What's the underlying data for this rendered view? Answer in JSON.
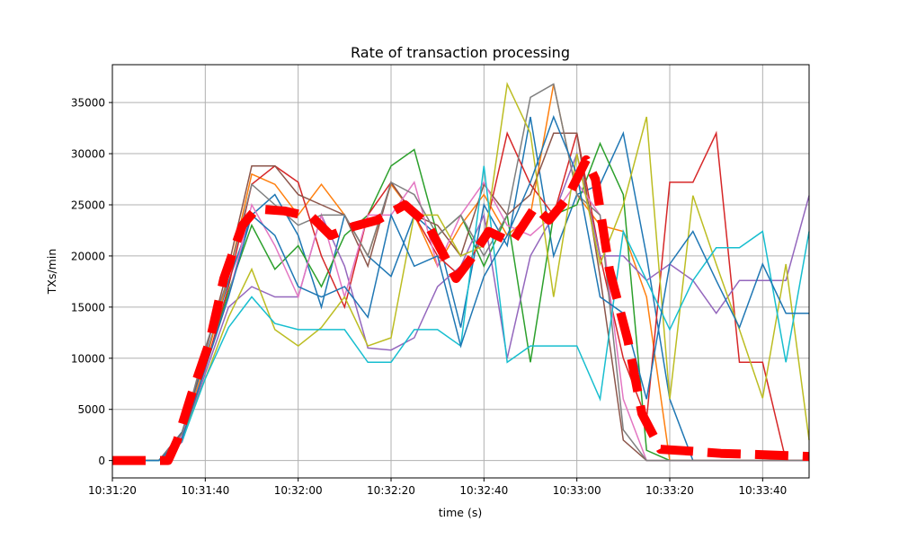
{
  "chart_data": {
    "type": "line",
    "title": "Rate of transaction processing",
    "xlabel": "time (s)",
    "ylabel": "TXs/min",
    "xlim": [
      "10:31:20",
      "10:33:50"
    ],
    "ylim": [
      -1700,
      38700
    ],
    "grid": true,
    "xticks": [
      "10:31:20",
      "10:31:40",
      "10:32:00",
      "10:32:20",
      "10:32:40",
      "10:33:00",
      "10:33:20",
      "10:33:40"
    ],
    "yticks": [
      0,
      5000,
      10000,
      15000,
      20000,
      25000,
      30000,
      35000
    ],
    "x": [
      "10:31:20",
      "10:31:25",
      "10:31:30",
      "10:31:35",
      "10:31:40",
      "10:31:45",
      "10:31:50",
      "10:31:55",
      "10:32:00",
      "10:32:05",
      "10:32:10",
      "10:32:15",
      "10:32:20",
      "10:32:25",
      "10:32:30",
      "10:32:35",
      "10:32:40",
      "10:32:45",
      "10:32:50",
      "10:32:55",
      "10:33:00",
      "10:33:05",
      "10:33:10",
      "10:33:15",
      "10:33:20",
      "10:33:25",
      "10:33:30",
      "10:33:35",
      "10:33:40",
      "10:33:45",
      "10:33:50"
    ],
    "series": [
      {
        "color": "#1f77b4",
        "values": [
          0,
          0,
          0,
          2800,
          10000,
          17500,
          24000,
          26000,
          22000,
          15000,
          24000,
          20000,
          18000,
          24000,
          22000,
          13000,
          25000,
          21000,
          33600,
          20000,
          26000,
          27000,
          32000,
          20000,
          6000,
          0,
          0,
          0,
          0,
          0,
          0
        ]
      },
      {
        "color": "#ff7f0e",
        "values": [
          0,
          0,
          0,
          2500,
          9500,
          18000,
          28000,
          27000,
          24000,
          27000,
          24000,
          20000,
          27000,
          24000,
          19000,
          23000,
          26000,
          22000,
          24000,
          36800,
          26000,
          23000,
          22400,
          16000,
          0,
          0,
          0,
          0,
          0,
          0,
          0
        ]
      },
      {
        "color": "#2ca02c",
        "values": [
          0,
          0,
          0,
          2000,
          9000,
          16500,
          23000,
          18700,
          21000,
          17000,
          22000,
          24000,
          28800,
          30400,
          22000,
          24000,
          19000,
          24000,
          9600,
          24000,
          25000,
          31000,
          26000,
          1000,
          0,
          0,
          0,
          0,
          0,
          0,
          0
        ]
      },
      {
        "color": "#d62728",
        "values": [
          0,
          0,
          0,
          2300,
          9000,
          17000,
          27000,
          28800,
          27200,
          20000,
          15000,
          24000,
          27200,
          24000,
          20000,
          18000,
          22000,
          32000,
          27000,
          24000,
          32000,
          20000,
          10000,
          4000,
          27200,
          27200,
          32000,
          9600,
          9600,
          0,
          0
        ]
      },
      {
        "color": "#9467bd",
        "values": [
          0,
          0,
          0,
          1800,
          8500,
          15000,
          17000,
          16000,
          16000,
          24000,
          19000,
          11000,
          10800,
          12000,
          17000,
          19000,
          24000,
          10000,
          20000,
          24000,
          30000,
          20000,
          20000,
          17600,
          19200,
          17600,
          14400,
          17600,
          17600,
          17600,
          25900
        ]
      },
      {
        "color": "#8c564b",
        "values": [
          0,
          0,
          0,
          2700,
          10500,
          19000,
          28800,
          28800,
          26000,
          25000,
          24000,
          19000,
          27200,
          24000,
          23000,
          20000,
          27000,
          24000,
          26000,
          32000,
          32000,
          18000,
          2000,
          0,
          0,
          0,
          0,
          0,
          0,
          0,
          0
        ]
      },
      {
        "color": "#e377c2",
        "values": [
          0,
          0,
          0,
          2400,
          9000,
          16000,
          25000,
          21000,
          16000,
          24000,
          16000,
          24000,
          24000,
          27200,
          19000,
          24000,
          27200,
          23000,
          22000,
          24000,
          27200,
          24000,
          6000,
          0,
          0,
          0,
          0,
          0,
          0,
          0,
          0
        ]
      },
      {
        "color": "#7f7f7f",
        "values": [
          0,
          0,
          0,
          2600,
          11000,
          18000,
          27000,
          25000,
          23000,
          24000,
          24000,
          20000,
          27200,
          26000,
          22000,
          24000,
          20000,
          24000,
          35500,
          36800,
          26000,
          24000,
          3000,
          0,
          0,
          0,
          0,
          0,
          0,
          0,
          0
        ]
      },
      {
        "color": "#bcbd22",
        "values": [
          0,
          0,
          0,
          2000,
          8000,
          14000,
          18700,
          12800,
          11200,
          13000,
          16000,
          11200,
          12000,
          24000,
          24000,
          20000,
          21000,
          36800,
          32000,
          16000,
          30000,
          19200,
          25000,
          33600,
          6000,
          25900,
          19200,
          12800,
          6100,
          19200,
          2000
        ]
      },
      {
        "color": "#17becf",
        "values": [
          0,
          0,
          0,
          1900,
          8000,
          13000,
          16000,
          13400,
          12800,
          12800,
          12800,
          9600,
          9600,
          12800,
          12800,
          11200,
          28800,
          9600,
          11200,
          11200,
          11200,
          6000,
          22400,
          17600,
          12800,
          17600,
          20800,
          20800,
          22400,
          9600,
          22400
        ]
      },
      {
        "color": "#1f77b4",
        "values": [
          0,
          0,
          0,
          2200,
          9000,
          16000,
          24000,
          22000,
          17000,
          16000,
          17000,
          14000,
          24000,
          19000,
          20000,
          11200,
          18000,
          22000,
          27200,
          33600,
          28000,
          16000,
          14400,
          6000,
          19200,
          22400,
          17600,
          13000,
          19200,
          14400,
          14400
        ]
      }
    ],
    "mean": {
      "color": "#ff0000",
      "x": [
        "10:31:20",
        "10:31:28",
        "10:31:32",
        "10:31:34",
        "10:31:37",
        "10:31:41",
        "10:31:44",
        "10:31:48",
        "10:31:51",
        "10:31:57",
        "10:32:03",
        "10:32:07",
        "10:32:12",
        "10:32:17",
        "10:32:23",
        "10:32:28",
        "10:32:34",
        "10:32:37",
        "10:32:41",
        "10:32:46",
        "10:32:51",
        "10:32:54",
        "10:32:58",
        "10:33:02",
        "10:33:04",
        "10:33:07",
        "10:33:11",
        "10:33:14",
        "10:33:18",
        "10:33:25",
        "10:33:31",
        "10:33:38",
        "10:33:50"
      ],
      "values": [
        0,
        0,
        0,
        2000,
        6400,
        11700,
        17800,
        23000,
        24600,
        24400,
        23800,
        22000,
        22900,
        23500,
        25000,
        23000,
        17800,
        19600,
        22400,
        21300,
        24800,
        23500,
        25700,
        29400,
        27500,
        18700,
        11700,
        4600,
        1100,
        900,
        700,
        600,
        400
      ]
    }
  }
}
